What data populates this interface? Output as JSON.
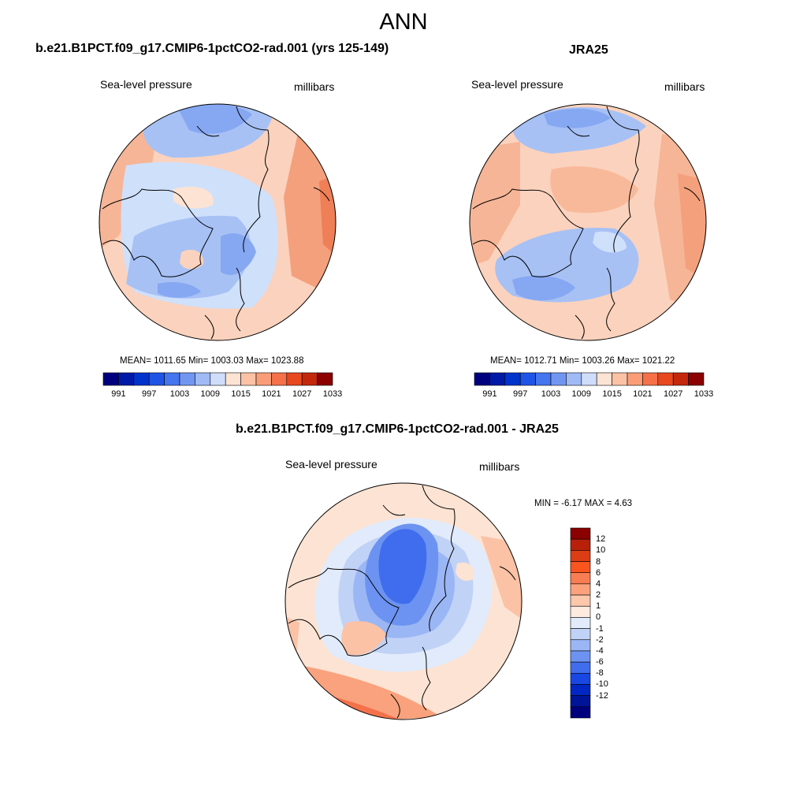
{
  "main_title": "ANN",
  "panels": [
    {
      "title": "b.e21.B1PCT.f09_g17.CMIP6-1pctCO2-rad.001 (yrs 125-149)",
      "field_label": "Sea-level pressure",
      "units_label": "millibars",
      "stats": "MEAN= 1011.65  Min= 1003.03  Max= 1023.88"
    },
    {
      "title": "JRA25",
      "field_label": "Sea-level pressure",
      "units_label": "millibars",
      "stats": "MEAN= 1012.71  Min= 1003.26  Max= 1021.22"
    },
    {
      "title": "b.e21.B1PCT.f09_g17.CMIP6-1pctCO2-rad.001 - JRA25",
      "field_label": "Sea-level pressure",
      "units_label": "millibars",
      "stats": "MIN =  -6.17 MAX =   4.63"
    }
  ],
  "abs_colorbar": {
    "colors": [
      "#00007f",
      "#0019a6",
      "#0033cc",
      "#1f55e6",
      "#4575ef",
      "#7196f2",
      "#a0baf6",
      "#cfdcfa",
      "#fde3d3",
      "#fcc2a6",
      "#f99d78",
      "#f4714a",
      "#e8481f",
      "#c4280c",
      "#8b0000"
    ],
    "tick_labels": [
      "991",
      "997",
      "1003",
      "1009",
      "1015",
      "1021",
      "1027",
      "1033"
    ]
  },
  "diff_colorbar": {
    "colors": [
      "#8b0000",
      "#b8200a",
      "#dd3d15",
      "#fa541f",
      "#f97d52",
      "#fba27d",
      "#fcc7ab",
      "#feeadf",
      "#e1ebfb",
      "#c1d2f7",
      "#9bb6f5",
      "#6c93f1",
      "#3f6ded",
      "#1847e4",
      "#0026c4",
      "#001499",
      "#00007f"
    ],
    "labels": [
      "12",
      "10",
      "8",
      "6",
      "4",
      "2",
      "1",
      "0",
      "-1",
      "-2",
      "-4",
      "-6",
      "-8",
      "-10",
      "-12"
    ]
  }
}
